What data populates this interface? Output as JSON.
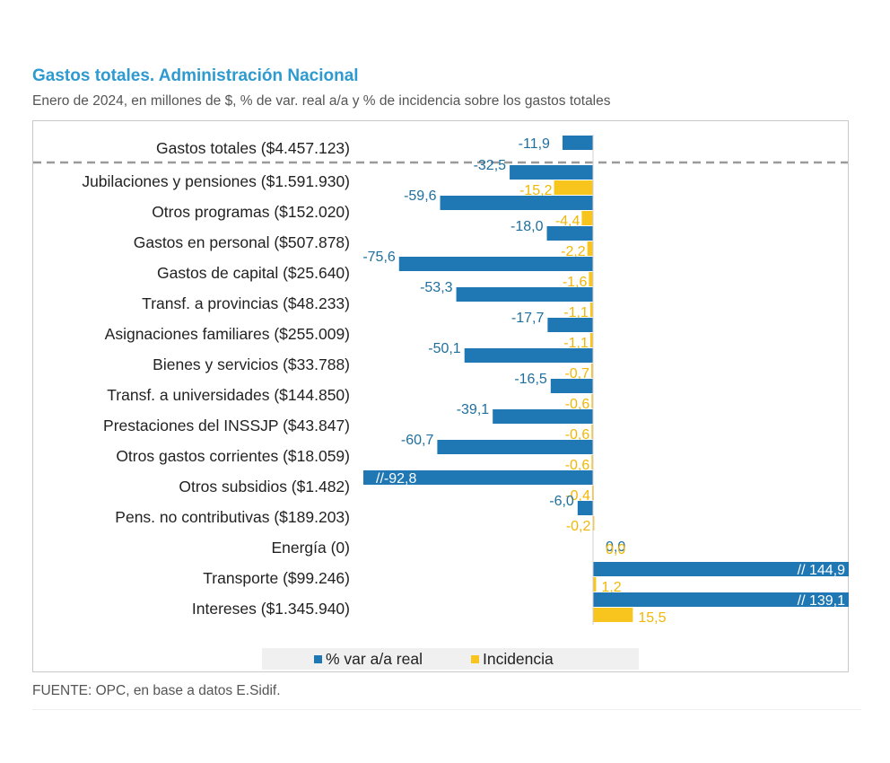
{
  "title": "Gastos totales. Administración Nacional",
  "subtitle": "Enero de 2024, en millones de $, % de var. real a/a y % de incidencia sobre los gastos totales",
  "source": "FUENTE: OPC, en base a datos E.Sidif.",
  "colors": {
    "variation": "#1f78b4",
    "incidence": "#f7c51e",
    "title": "#2e9ad0"
  },
  "legend": {
    "variation": "% var a/a real",
    "incidence": "Incidencia"
  },
  "chart_data": {
    "type": "bar",
    "orientation": "horizontal",
    "grid": false,
    "legend_position": "bottom",
    "total": {
      "category": "Gastos totales ($4.457.123)",
      "variation": -11.9,
      "variation_label": "-11,9"
    },
    "categories": [
      "Jubilaciones y pensiones ($1.591.930)",
      "Otros programas ($152.020)",
      "Gastos en personal ($507.878)",
      "Gastos de capital ($25.640)",
      "Transf. a provincias ($48.233)",
      "Asignaciones familiares ($255.009)",
      "Bienes y servicios ($33.788)",
      "Transf. a universidades ($144.850)",
      "Prestaciones del INSSJP ($43.847)",
      "Otros gastos corrientes ($18.059)",
      "Otros subsidios ($1.482)",
      "Pens. no contributivas ($189.203)",
      "Energía (0)",
      "Transporte ($99.246)",
      "Intereses ($1.345.940)"
    ],
    "series": [
      {
        "name": "% var a/a real",
        "values": [
          -32.5,
          -59.6,
          -18.0,
          -75.6,
          -53.3,
          -17.7,
          -50.1,
          -16.5,
          -39.1,
          -60.7,
          -92.8,
          -6.0,
          0.0,
          144.9,
          139.1
        ],
        "labels": [
          "-32,5",
          "-59,6",
          "-18,0",
          "-75,6",
          "-53,3",
          "-17,7",
          "-50,1",
          "-16,5",
          "-39,1",
          "-60,7",
          "//-92,8",
          "-6,0",
          "0,0",
          "// 144,9",
          "// 139,1"
        ],
        "truncated": [
          false,
          false,
          false,
          false,
          false,
          false,
          false,
          false,
          false,
          false,
          true,
          false,
          false,
          true,
          true
        ]
      },
      {
        "name": "Incidencia",
        "values": [
          -15.2,
          -4.4,
          -2.2,
          -1.6,
          -1.1,
          -1.1,
          -0.7,
          -0.6,
          -0.6,
          -0.6,
          -0.4,
          -0.2,
          0.0,
          1.2,
          15.5
        ],
        "labels": [
          "-15,2",
          "-4,4",
          "-2,2",
          "-1,6",
          "-1,1",
          "-1,1",
          "-0,7",
          "-0,6",
          "-0,6",
          "-0,6",
          "-0,4",
          "-0,2",
          "0,0",
          "1,2",
          "15,5"
        ]
      }
    ]
  }
}
